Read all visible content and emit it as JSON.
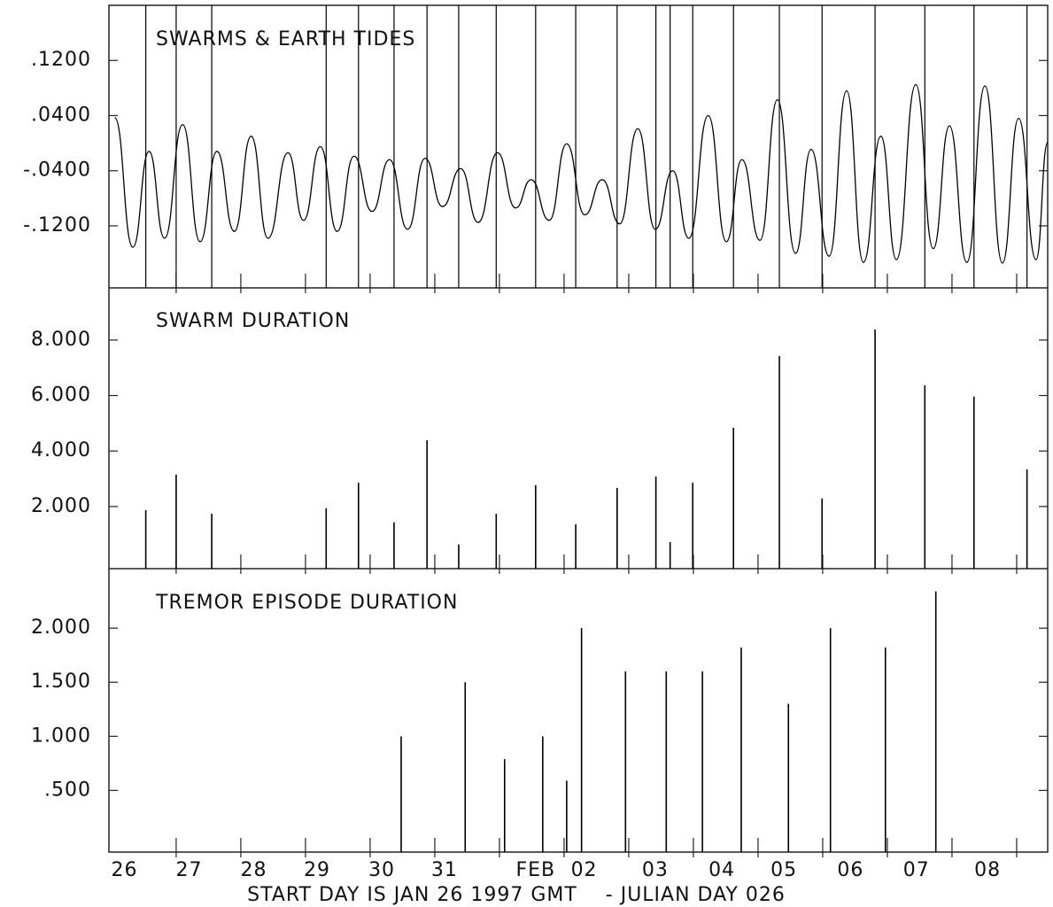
{
  "chart_data": [
    {
      "type": "line",
      "title": "SWARMS & EARTH TIDES",
      "xlim": [
        -0.04,
        14.48
      ],
      "xticks": [
        1,
        2,
        3,
        4,
        5,
        6,
        7,
        8,
        9,
        10,
        11,
        12,
        13,
        14
      ],
      "ylim": [
        -0.21,
        0.2
      ],
      "yticks": [
        {
          "value": 0.12,
          "label": ".1200"
        },
        {
          "value": 0.04,
          "label": ".0400"
        },
        {
          "value": -0.04,
          "label": "-.0400"
        },
        {
          "value": -0.12,
          "label": "-.1200"
        }
      ],
      "color": "#000000",
      "x": [
        0.05,
        0.33,
        0.58,
        0.82,
        1.1,
        1.37,
        1.63,
        1.9,
        2.16,
        2.42,
        2.73,
        2.97,
        3.23,
        3.49,
        3.75,
        4.03,
        4.3,
        4.58,
        4.85,
        5.12,
        5.4,
        5.67,
        5.97,
        6.25,
        6.49,
        6.77,
        7.04,
        7.32,
        7.59,
        7.86,
        8.14,
        8.41,
        8.68,
        8.93,
        9.23,
        9.51,
        9.75,
        10.03,
        10.3,
        10.58,
        10.82,
        11.1,
        11.37,
        11.63,
        11.9,
        12.14,
        12.44,
        12.71,
        12.96,
        13.23,
        13.51,
        13.78,
        14.03,
        14.3,
        14.48
      ],
      "values": [
        0.037,
        -0.151,
        -0.012,
        -0.138,
        0.027,
        -0.143,
        -0.012,
        -0.128,
        0.01,
        -0.138,
        -0.014,
        -0.112,
        -0.005,
        -0.128,
        -0.019,
        -0.099,
        -0.024,
        -0.125,
        -0.022,
        -0.092,
        -0.037,
        -0.115,
        -0.014,
        -0.094,
        -0.053,
        -0.112,
        -0.001,
        -0.104,
        -0.053,
        -0.117,
        0.021,
        -0.125,
        -0.04,
        -0.138,
        0.04,
        -0.143,
        -0.024,
        -0.141,
        0.063,
        -0.16,
        -0.009,
        -0.164,
        0.076,
        -0.173,
        0.01,
        -0.169,
        0.085,
        -0.153,
        0.025,
        -0.173,
        0.083,
        -0.174,
        0.036,
        -0.169,
        0.001
      ]
    },
    {
      "type": "bar",
      "title": "SWARM DURATION",
      "xlim": [
        -0.04,
        14.48
      ],
      "xticks": [
        1,
        2,
        3,
        4,
        5,
        6,
        7,
        8,
        9,
        10,
        11,
        12,
        13,
        14
      ],
      "ylim": [
        -0.24,
        9.88
      ],
      "yticks": [
        {
          "value": 8,
          "label": "8.000"
        },
        {
          "value": 6,
          "label": "6.000"
        },
        {
          "value": 4,
          "label": "4.000"
        },
        {
          "value": 2,
          "label": "2.000"
        }
      ],
      "color": "#000000",
      "x": [
        0.53,
        1.0,
        1.55,
        3.32,
        3.82,
        4.37,
        4.88,
        5.37,
        5.95,
        6.56,
        7.18,
        7.82,
        8.42,
        8.64,
        8.99,
        9.62,
        10.33,
        10.99,
        11.81,
        12.58,
        13.34,
        14.16
      ],
      "values": [
        1.87,
        3.15,
        1.74,
        1.94,
        2.86,
        1.43,
        4.39,
        0.63,
        1.74,
        2.77,
        1.36,
        2.67,
        3.08,
        0.72,
        2.86,
        4.84,
        7.42,
        2.29,
        8.38,
        6.37,
        5.96,
        3.34
      ]
    },
    {
      "type": "bar",
      "title": "TREMOR EPISODE DURATION",
      "xlim": [
        -0.04,
        14.48
      ],
      "xticks": [
        1,
        2,
        3,
        4,
        5,
        6,
        7,
        8,
        9,
        10,
        11,
        12,
        13,
        14
      ],
      "ylim": [
        -0.07,
        2.55
      ],
      "yticks": [
        {
          "value": 2,
          "label": "2.000"
        },
        {
          "value": 1.5,
          "label": "1.500"
        },
        {
          "value": 1,
          "label": "1.000"
        },
        {
          "value": 0.5,
          "label": ".500"
        }
      ],
      "color": "#000000",
      "x": [
        4.48,
        5.47,
        6.08,
        6.67,
        7.04,
        7.27,
        7.95,
        8.58,
        9.14,
        9.74,
        10.47,
        11.12,
        11.97,
        12.75
      ],
      "values": [
        1.0,
        1.5,
        0.79,
        1.0,
        0.59,
        2.0,
        1.6,
        1.6,
        1.6,
        1.82,
        1.3,
        2.0,
        1.82,
        2.34
      ],
      "day_labels": [
        {
          "value": 0.2,
          "label": "26"
        },
        {
          "value": 1.2,
          "label": "27"
        },
        {
          "value": 2.2,
          "label": "28"
        },
        {
          "value": 3.18,
          "label": "29"
        },
        {
          "value": 4.18,
          "label": "30"
        },
        {
          "value": 5.15,
          "label": "31"
        },
        {
          "value": 6.56,
          "label": "FEB"
        },
        {
          "value": 7.31,
          "label": "02"
        },
        {
          "value": 8.41,
          "label": "03"
        },
        {
          "value": 9.44,
          "label": "04"
        },
        {
          "value": 10.4,
          "label": "05"
        },
        {
          "value": 11.43,
          "label": "06"
        },
        {
          "value": 12.45,
          "label": "07"
        },
        {
          "value": 13.55,
          "label": "08"
        }
      ],
      "x_label": "START DAY IS JAN 26 1997 GMT    - JULIAN DAY 026"
    }
  ]
}
